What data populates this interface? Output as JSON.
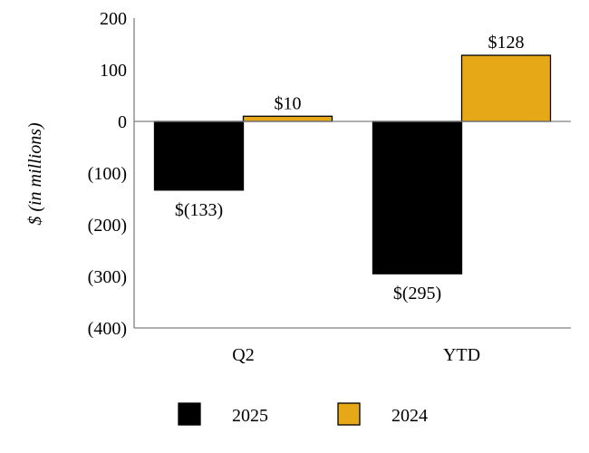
{
  "chart_data": {
    "type": "bar",
    "categories": [
      "Q2",
      "YTD"
    ],
    "series": [
      {
        "name": "2025",
        "values": [
          -133,
          -295
        ],
        "labels": [
          "$(133)",
          "$(295)"
        ],
        "color": "#000000"
      },
      {
        "name": "2024",
        "values": [
          10,
          128
        ],
        "labels": [
          "$10",
          "$128"
        ],
        "color": "#E6A817"
      }
    ],
    "ylabel": "$ (in millions)",
    "ylim": [
      -400,
      200
    ],
    "yticks": [
      200,
      100,
      0,
      -100,
      -200,
      -300,
      -400
    ],
    "ytick_labels": [
      "200",
      "100",
      "0",
      "(100)",
      "(200)",
      "(300)",
      "(400)"
    ],
    "grid": false,
    "legend_position": "bottom-center"
  }
}
